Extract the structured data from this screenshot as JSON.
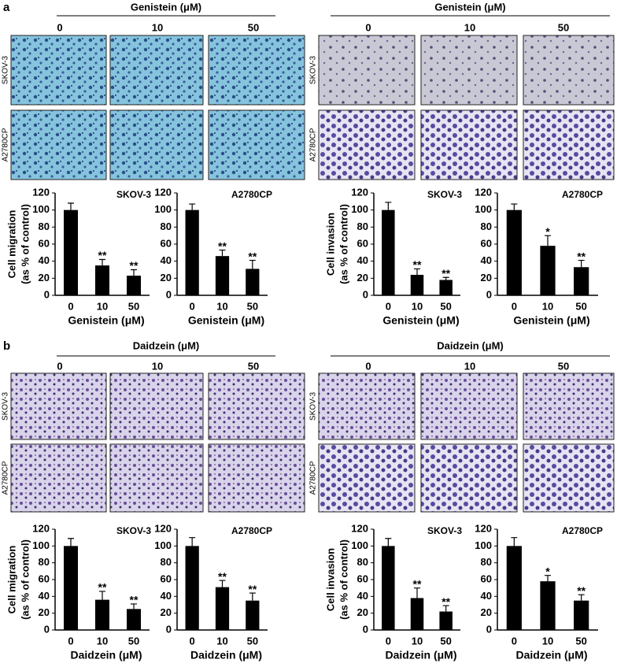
{
  "panels": [
    {
      "label": "a",
      "halves": [
        {
          "treatment": "Genistein (μM)",
          "concentrations": [
            "0",
            "10",
            "50"
          ],
          "cell_lines": [
            "SKOV-3",
            "A2780CP"
          ]
        },
        {
          "treatment": "Genistein (μM)",
          "concentrations": [
            "0",
            "10",
            "50"
          ],
          "cell_lines": [
            "SKOV-3",
            "A2780CP"
          ]
        }
      ]
    },
    {
      "label": "b",
      "halves": [
        {
          "treatment": "Daidzein (μM)",
          "concentrations": [
            "0",
            "10",
            "50"
          ],
          "cell_lines": [
            "SKOV-3",
            "A2780CP"
          ]
        },
        {
          "treatment": "Daidzein (μM)",
          "concentrations": [
            "0",
            "10",
            "50"
          ],
          "cell_lines": [
            "SKOV-3",
            "A2780CP"
          ]
        }
      ]
    }
  ],
  "chart_data": [
    {
      "type": "bar",
      "title": "SKOV-3",
      "y_label": [
        "Cell migration",
        "(as % of control)"
      ],
      "x_label": "Genistein (μM)",
      "categories": [
        "0",
        "10",
        "50"
      ],
      "values": [
        100,
        35,
        23
      ],
      "errors": [
        8,
        7,
        7
      ],
      "significance": [
        null,
        "**",
        "**"
      ],
      "color": "#000000",
      "ylim": [
        0,
        120
      ],
      "yticks": [
        0,
        20,
        40,
        60,
        80,
        100,
        120
      ]
    },
    {
      "type": "bar",
      "title": "A2780CP",
      "x_label": "Genistein (μM)",
      "categories": [
        "0",
        "10",
        "50"
      ],
      "values": [
        100,
        46,
        31
      ],
      "errors": [
        7,
        7,
        10
      ],
      "significance": [
        null,
        "**",
        "**"
      ],
      "color": "#000000",
      "ylim": [
        0,
        120
      ],
      "yticks": [
        0,
        20,
        40,
        60,
        80,
        100,
        120
      ]
    },
    {
      "type": "bar",
      "title": "SKOV-3",
      "y_label": [
        "Cell invasion",
        "(as % of control)"
      ],
      "x_label": "Genistein (μM)",
      "categories": [
        "0",
        "10",
        "50"
      ],
      "values": [
        100,
        24,
        18
      ],
      "errors": [
        9,
        7,
        3
      ],
      "significance": [
        null,
        "**",
        "**"
      ],
      "color": "#000000",
      "ylim": [
        0,
        120
      ],
      "yticks": [
        0,
        20,
        40,
        60,
        80,
        100,
        120
      ]
    },
    {
      "type": "bar",
      "title": "A2780CP",
      "x_label": "Genistein (μM)",
      "categories": [
        "0",
        "10",
        "50"
      ],
      "values": [
        100,
        58,
        33
      ],
      "errors": [
        7,
        12,
        8
      ],
      "significance": [
        null,
        "*",
        "**"
      ],
      "color": "#000000",
      "ylim": [
        0,
        120
      ],
      "yticks": [
        0,
        20,
        40,
        60,
        80,
        100,
        120
      ]
    },
    {
      "type": "bar",
      "title": "SKOV-3",
      "y_label": [
        "Cell migration",
        "(as % of control)"
      ],
      "x_label": "Daidzein (μM)",
      "categories": [
        "0",
        "10",
        "50"
      ],
      "values": [
        100,
        36,
        25
      ],
      "errors": [
        9,
        10,
        6
      ],
      "significance": [
        null,
        "**",
        "**"
      ],
      "color": "#000000",
      "ylim": [
        0,
        120
      ],
      "yticks": [
        0,
        20,
        40,
        60,
        80,
        100,
        120
      ]
    },
    {
      "type": "bar",
      "title": "A2780CP",
      "x_label": "Daidzein (μM)",
      "categories": [
        "0",
        "10",
        "50"
      ],
      "values": [
        100,
        51,
        35
      ],
      "errors": [
        10,
        8,
        9
      ],
      "significance": [
        null,
        "**",
        "**"
      ],
      "color": "#000000",
      "ylim": [
        0,
        120
      ],
      "yticks": [
        0,
        20,
        40,
        60,
        80,
        100,
        120
      ]
    },
    {
      "type": "bar",
      "title": "SKOV-3",
      "y_label": [
        "Cell invasion",
        "(as % of control)"
      ],
      "x_label": "Daidzein (μM)",
      "categories": [
        "0",
        "10",
        "50"
      ],
      "values": [
        100,
        38,
        22
      ],
      "errors": [
        9,
        12,
        7
      ],
      "significance": [
        null,
        "**",
        "**"
      ],
      "color": "#000000",
      "ylim": [
        0,
        120
      ],
      "yticks": [
        0,
        20,
        40,
        60,
        80,
        100,
        120
      ]
    },
    {
      "type": "bar",
      "title": "A2780CP",
      "x_label": "Daidzein (μM)",
      "categories": [
        "0",
        "10",
        "50"
      ],
      "values": [
        100,
        58,
        35
      ],
      "errors": [
        10,
        7,
        7
      ],
      "significance": [
        null,
        "*",
        "**"
      ],
      "color": "#000000",
      "ylim": [
        0,
        120
      ],
      "yticks": [
        0,
        20,
        40,
        60,
        80,
        100,
        120
      ]
    }
  ]
}
